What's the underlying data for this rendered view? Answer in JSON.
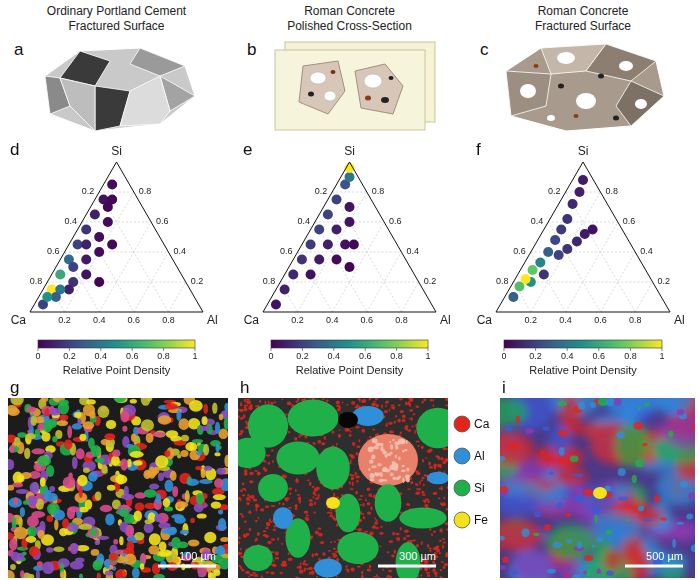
{
  "columns": [
    {
      "letter": "a",
      "title": "Ordinary Portland Cement",
      "subtitle": "Fractured Surface"
    },
    {
      "letter": "b",
      "title": "Roman Concrete",
      "subtitle": "Polished Cross-Section"
    },
    {
      "letter": "c",
      "title": "Roman Concrete",
      "subtitle": "Fractured Surface"
    }
  ],
  "chart_data": [
    {
      "type": "ternary",
      "letter": "d",
      "vertices": {
        "top": "Si",
        "left": "Ca",
        "right": "Al"
      },
      "ticks": [
        0.2,
        0.4,
        0.6,
        0.8
      ],
      "grid": true,
      "points": {
        "Ca": [
          0.1,
          0.2,
          0.3,
          0.4,
          0.5,
          0.6,
          0.7,
          0.8,
          0.15,
          0.2,
          0.25,
          0.3,
          0.4,
          0.35,
          0.5,
          0.55,
          0.45,
          0.5,
          0.6,
          0.65,
          0.7,
          0.75,
          0.8,
          0.9,
          0.85
        ],
        "Si": [
          0.85,
          0.75,
          0.65,
          0.55,
          0.45,
          0.35,
          0.25,
          0.15,
          0.75,
          0.7,
          0.6,
          0.45,
          0.4,
          0.5,
          0.2,
          0.25,
          0.45,
          0.35,
          0.3,
          0.2,
          0.15,
          0.15,
          0.1,
          0.05,
          0.1
        ],
        "Al": [
          0.05,
          0.05,
          0.05,
          0.05,
          0.05,
          0.05,
          0.05,
          0.05,
          0.1,
          0.1,
          0.15,
          0.25,
          0.2,
          0.15,
          0.3,
          0.2,
          0.1,
          0.15,
          0.1,
          0.15,
          0.15,
          0.1,
          0.1,
          0.05,
          0.05
        ],
        "density": [
          0.03,
          0.05,
          0.1,
          0.15,
          0.2,
          0.35,
          0.6,
          1,
          0.02,
          0.02,
          0.03,
          0.02,
          0.03,
          0.04,
          0.01,
          0.05,
          0.1,
          0.08,
          0.2,
          0.15,
          0.1,
          0.4,
          0.3,
          0.2,
          0.5
        ]
      },
      "colorbar": {
        "label": "Relative Point Density",
        "range": [
          0,
          1
        ],
        "ticks": [
          0,
          0.2,
          0.4,
          0.6,
          0.8,
          1
        ]
      }
    },
    {
      "type": "ternary",
      "letter": "e",
      "vertices": {
        "top": "Si",
        "left": "Ca",
        "right": "Al"
      },
      "ticks": [
        0.2,
        0.4,
        0.6,
        0.8
      ],
      "grid": true,
      "points": {
        "Ca": [
          0.35,
          0.25,
          0.4,
          0.3,
          0.2,
          0.6,
          0.15,
          0.5,
          0.4,
          0.3,
          0.9,
          0.8,
          0.7,
          0.6,
          0.5,
          0.4,
          0.3,
          0.2,
          0.1,
          0.05,
          0.02
        ],
        "Si": [
          0.3,
          0.45,
          0.35,
          0.45,
          0.6,
          0.25,
          0.7,
          0.35,
          0.45,
          0.55,
          0.05,
          0.15,
          0.25,
          0.35,
          0.45,
          0.55,
          0.65,
          0.75,
          0.85,
          0.9,
          0.96
        ],
        "Al": [
          0.35,
          0.3,
          0.25,
          0.25,
          0.2,
          0.15,
          0.15,
          0.15,
          0.15,
          0.15,
          0.05,
          0.05,
          0.05,
          0.05,
          0.05,
          0.05,
          0.05,
          0.05,
          0.05,
          0.05,
          0.02
        ],
        "density": [
          0.01,
          0.02,
          0.03,
          0.05,
          0.05,
          0.05,
          0.06,
          0.08,
          0.1,
          0.1,
          0.05,
          0.1,
          0.12,
          0.15,
          0.18,
          0.2,
          0.2,
          0.2,
          0.25,
          0.4,
          1
        ]
      },
      "colorbar": {
        "label": "Relative Point Density",
        "range": [
          0,
          1
        ],
        "ticks": [
          0,
          0.2,
          0.4,
          0.6,
          0.8,
          1
        ]
      }
    },
    {
      "type": "ternary",
      "letter": "f",
      "vertices": {
        "top": "Si",
        "left": "Ca",
        "right": "Al"
      },
      "ticks": [
        0.2,
        0.4,
        0.6,
        0.8
      ],
      "grid": true,
      "points": {
        "Ca": [
          0.17,
          0.23,
          0.06,
          0.12,
          0.3,
          0.2,
          0.38,
          0.6,
          0.28,
          0.45,
          0.35,
          0.42,
          0.85,
          0.5,
          0.58,
          0.7,
          0.78,
          0.65,
          0.72
        ],
        "Si": [
          0.55,
          0.52,
          0.88,
          0.8,
          0.47,
          0.72,
          0.42,
          0.25,
          0.62,
          0.38,
          0.55,
          0.48,
          0.1,
          0.4,
          0.33,
          0.2,
          0.17,
          0.28,
          0.22
        ],
        "Al": [
          0.28,
          0.25,
          0.06,
          0.08,
          0.23,
          0.08,
          0.2,
          0.15,
          0.1,
          0.17,
          0.1,
          0.1,
          0.05,
          0.1,
          0.09,
          0.1,
          0.05,
          0.07,
          0.06
        ],
        "density": [
          0.05,
          0.08,
          0.08,
          0.1,
          0.12,
          0.12,
          0.15,
          0.15,
          0.15,
          0.2,
          0.18,
          0.22,
          0.3,
          0.3,
          0.45,
          0.5,
          0.7,
          0.75,
          1
        ]
      },
      "colorbar": {
        "label": "Relative Point Density",
        "range": [
          0,
          1
        ],
        "ticks": [
          0,
          0.2,
          0.4,
          0.6,
          0.8,
          1
        ]
      }
    }
  ],
  "maps": [
    {
      "letter": "g",
      "scale_bar": "100 µm"
    },
    {
      "letter": "h",
      "scale_bar": "300 µm"
    },
    {
      "letter": "i",
      "scale_bar": "500 µm"
    }
  ],
  "element_legend": [
    {
      "name": "Ca",
      "color": "#e3241b"
    },
    {
      "name": "Al",
      "color": "#2f8fd8"
    },
    {
      "name": "Si",
      "color": "#20b04a"
    },
    {
      "name": "Fe",
      "color": "#f2e31c"
    }
  ]
}
